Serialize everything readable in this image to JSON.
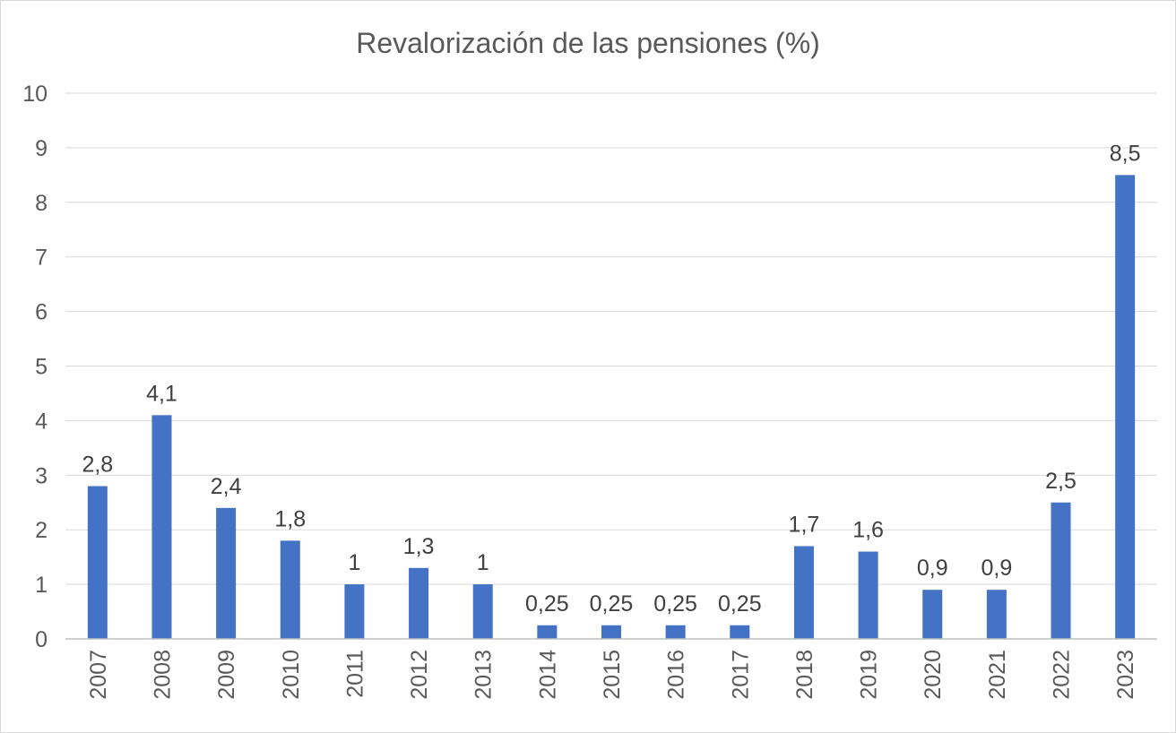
{
  "chart_data": {
    "type": "bar",
    "title": "Revalorización de las pensiones (%)",
    "xlabel": "",
    "ylabel": "",
    "ylim": [
      0,
      10
    ],
    "yticks": [
      "0",
      "1",
      "2",
      "3",
      "4",
      "5",
      "6",
      "7",
      "8",
      "9",
      "10"
    ],
    "grid": true,
    "legend": "none",
    "categories": [
      "2007",
      "2008",
      "2009",
      "2010",
      "2011",
      "2012",
      "2013",
      "2014",
      "2015",
      "2016",
      "2017",
      "2018",
      "2019",
      "2020",
      "2021",
      "2022",
      "2023"
    ],
    "values": [
      2.8,
      4.1,
      2.4,
      1.8,
      1,
      1.3,
      1,
      0.25,
      0.25,
      0.25,
      0.25,
      1.7,
      1.6,
      0.9,
      0.9,
      2.5,
      8.5
    ],
    "data_labels": [
      "2,8",
      "4,1",
      "2,4",
      "1,8",
      "1",
      "1,3",
      "1",
      "0,25",
      "0,25",
      "0,25",
      "0,25",
      "1,7",
      "1,6",
      "0,9",
      "0,9",
      "2,5",
      "8,5"
    ],
    "bar_color": "#4472c4"
  }
}
